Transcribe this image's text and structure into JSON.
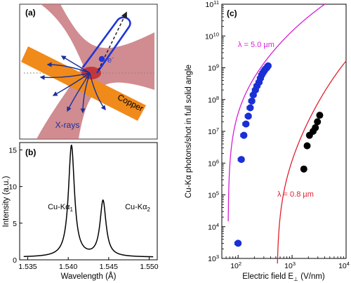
{
  "panels": {
    "a": {
      "label": "(a)",
      "electron_label": "e",
      "electron_sup": "-",
      "target_label": "Copper",
      "xray_label": "X-rays"
    }
  },
  "chart_data": [
    {
      "id": "b",
      "type": "line",
      "panel_label": "(b)",
      "xlabel": "Wavelength (Å)",
      "ylabel": "Intensity (a.u.)",
      "xlim": [
        1.534,
        1.551
      ],
      "ylim": [
        0,
        16
      ],
      "xticks": [
        1.535,
        1.54,
        1.545,
        1.55
      ],
      "xtick_labels": [
        "1.535",
        "1.540",
        "1.545",
        "1.550"
      ],
      "yticks": [
        0,
        5,
        10,
        15
      ],
      "ytick_labels": [
        "0",
        "5",
        "10",
        "15"
      ],
      "grid": false,
      "annotations": [
        {
          "base": "Cu-Kα",
          "sub": "1"
        },
        {
          "base": "Cu-Kα",
          "sub": "2"
        }
      ],
      "peaks": [
        {
          "center": 1.5404,
          "height": 15.2,
          "width": 0.00045
        },
        {
          "center": 1.5443,
          "height": 7.6,
          "width": 0.00045
        }
      ],
      "baseline": 0.35,
      "color": "#000000"
    },
    {
      "id": "c",
      "type": "scatter",
      "panel_label": "(c)",
      "xlabel": "Electric field E⊥ (V/nm)",
      "xlabel_parts": {
        "base": "Electric field E",
        "sub": "⊥",
        "unit": " (V/nm)"
      },
      "ylabel": "Cu-Kα photons/shot in full solid angle",
      "xscale": "log",
      "yscale": "log",
      "xlim": [
        50,
        10000
      ],
      "ylim": [
        1000,
        100000000000
      ],
      "xticks": [
        100,
        1000,
        10000
      ],
      "xtick_labels": [
        {
          "base": "10",
          "exp": "2"
        },
        {
          "base": "10",
          "exp": "3"
        },
        {
          "base": "10",
          "exp": "4"
        }
      ],
      "yticks": [
        1000,
        10000,
        100000,
        1000000,
        10000000,
        100000000,
        1000000000,
        10000000000,
        100000000000
      ],
      "ytick_labels": [
        {
          "base": "10",
          "exp": "3"
        },
        {
          "base": "10",
          "exp": "4"
        },
        {
          "base": "10",
          "exp": "5"
        },
        {
          "base": "10",
          "exp": "6"
        },
        {
          "base": "10",
          "exp": "7"
        },
        {
          "base": "10",
          "exp": "8"
        },
        {
          "base": "10",
          "exp": "9"
        },
        {
          "base": "10",
          "exp": "10"
        },
        {
          "base": "10",
          "exp": "11"
        }
      ],
      "grid": false,
      "curves": [
        {
          "label": "λ = 5.0 µm",
          "color": "#d61ed6",
          "x0": 65,
          "a": 320000000000.0,
          "b": 1.0,
          "c": 980
        },
        {
          "label": "λ = 0.8 µm",
          "color": "#e0202c",
          "x0": 520,
          "a": 6800000000.0,
          "b": 2.2,
          "c": 8200
        }
      ],
      "series": [
        {
          "color": "#1a2fd6",
          "points": [
            [
              100,
              3000
            ],
            [
              115,
              1300000
            ],
            [
              128,
              7500000
            ],
            [
              140,
              17000000
            ],
            [
              155,
              30000000
            ],
            [
              168,
              55000000
            ],
            [
              180,
              90000000
            ],
            [
              192,
              140000000
            ],
            [
              210,
              200000000
            ],
            [
              225,
              270000000
            ],
            [
              245,
              350000000
            ],
            [
              260,
              470000000
            ],
            [
              275,
              600000000
            ],
            [
              290,
              700000000
            ],
            [
              305,
              800000000
            ],
            [
              320,
              900000000
            ],
            [
              340,
              1000000000
            ],
            [
              360,
              1150000000
            ]
          ],
          "xerr_frac": 0.13
        },
        {
          "color": "#000000",
          "points": [
            [
              1650,
              650000
            ],
            [
              1900,
              3500000
            ],
            [
              2100,
              7500000
            ],
            [
              2450,
              10000000
            ],
            [
              2700,
              13000000
            ],
            [
              2950,
              20000000
            ],
            [
              3250,
              32000000
            ]
          ]
        }
      ]
    }
  ]
}
